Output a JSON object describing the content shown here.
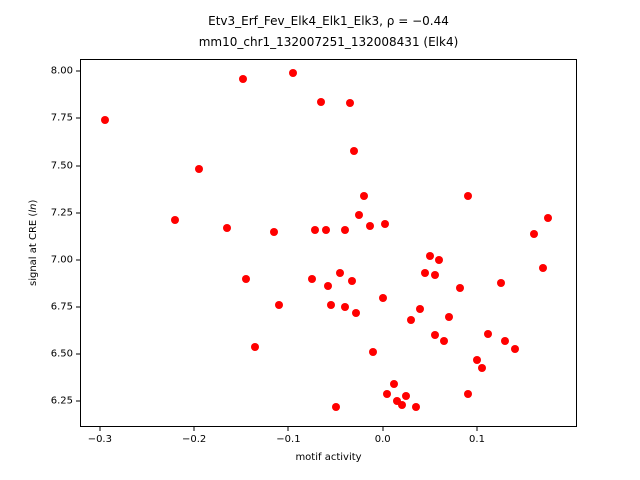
{
  "chart_data": {
    "type": "scatter",
    "title_line1": "Etv3_Erf_Fev_Elk4_Elk1_Elk3, ρ = −0.44",
    "title_line2": "mm10_chr1_132007251_132008431 (Elk4)",
    "xlabel": "motif activity",
    "ylabel_pre": "signal at CRE (",
    "ylabel_italic": "ln",
    "ylabel_post": ")",
    "marker_color": "#ff0000",
    "xlim": [
      -0.32,
      0.205
    ],
    "ylim": [
      6.12,
      8.06
    ],
    "xticks": [
      -0.3,
      -0.2,
      -0.1,
      0.0,
      0.1
    ],
    "xtick_labels": [
      "−0.3",
      "−0.2",
      "−0.1",
      "0.0",
      "0.1"
    ],
    "yticks": [
      6.25,
      6.5,
      6.75,
      7.0,
      7.25,
      7.5,
      7.75,
      8.0
    ],
    "ytick_labels": [
      "6.25",
      "6.50",
      "6.75",
      "7.00",
      "7.25",
      "7.50",
      "7.75",
      "8.00"
    ],
    "grid": false,
    "legend": "none",
    "points": [
      [
        -0.295,
        7.74
      ],
      [
        -0.22,
        7.21
      ],
      [
        -0.195,
        7.48
      ],
      [
        -0.165,
        7.17
      ],
      [
        -0.148,
        7.96
      ],
      [
        -0.145,
        6.9
      ],
      [
        -0.135,
        6.54
      ],
      [
        -0.115,
        7.15
      ],
      [
        -0.11,
        6.76
      ],
      [
        -0.095,
        7.99
      ],
      [
        -0.075,
        6.9
      ],
      [
        -0.072,
        7.16
      ],
      [
        -0.065,
        7.84
      ],
      [
        -0.06,
        7.16
      ],
      [
        -0.058,
        6.86
      ],
      [
        -0.055,
        6.76
      ],
      [
        -0.05,
        6.22
      ],
      [
        -0.045,
        6.93
      ],
      [
        -0.04,
        7.16
      ],
      [
        -0.04,
        6.75
      ],
      [
        -0.035,
        7.83
      ],
      [
        -0.033,
        6.89
      ],
      [
        -0.03,
        7.58
      ],
      [
        -0.028,
        6.72
      ],
      [
        -0.025,
        7.24
      ],
      [
        -0.02,
        7.34
      ],
      [
        -0.013,
        7.18
      ],
      [
        -0.01,
        6.51
      ],
      [
        0.002,
        7.19
      ],
      [
        0.0,
        6.8
      ],
      [
        0.005,
        6.29
      ],
      [
        0.012,
        6.34
      ],
      [
        0.015,
        6.25
      ],
      [
        0.02,
        6.23
      ],
      [
        0.025,
        6.28
      ],
      [
        0.03,
        6.68
      ],
      [
        0.035,
        6.22
      ],
      [
        0.04,
        6.74
      ],
      [
        0.045,
        6.93
      ],
      [
        0.05,
        7.02
      ],
      [
        0.055,
        6.92
      ],
      [
        0.055,
        6.6
      ],
      [
        0.06,
        7.0
      ],
      [
        0.065,
        6.57
      ],
      [
        0.07,
        6.7
      ],
      [
        0.082,
        6.85
      ],
      [
        0.09,
        7.34
      ],
      [
        0.09,
        6.29
      ],
      [
        0.1,
        6.47
      ],
      [
        0.105,
        6.43
      ],
      [
        0.112,
        6.61
      ],
      [
        0.125,
        6.88
      ],
      [
        0.13,
        6.57
      ],
      [
        0.14,
        6.53
      ],
      [
        0.16,
        7.14
      ],
      [
        0.175,
        7.22
      ],
      [
        0.17,
        6.96
      ]
    ]
  }
}
